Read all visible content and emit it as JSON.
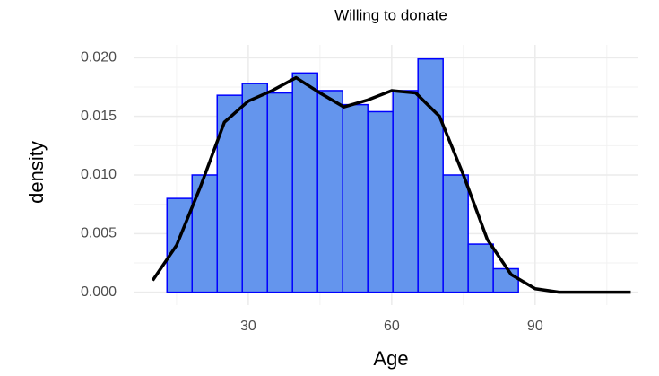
{
  "chart_data": {
    "type": "histogram",
    "title": "Willing to donate",
    "xlabel": "Age",
    "ylabel": "density",
    "bins": [
      13,
      18.25,
      23.5,
      28.75,
      34,
      39.25,
      44.5,
      49.75,
      55,
      60.25,
      65.5,
      70.75,
      76,
      81.25,
      86.5
    ],
    "values": [
      0.008,
      0.01,
      0.0168,
      0.0178,
      0.017,
      0.0187,
      0.0172,
      0.016,
      0.0154,
      0.0172,
      0.0199,
      0.01,
      0.0041,
      0.002
    ],
    "color": "#6495ed",
    "edgecolor": "#0000ff",
    "density": {
      "x": [
        10,
        15,
        20,
        25,
        30,
        35,
        40,
        45,
        50,
        55,
        60,
        65,
        70,
        75,
        80,
        85,
        90,
        95,
        100,
        110
      ],
      "y": [
        0.001,
        0.004,
        0.009,
        0.0145,
        0.0163,
        0.0172,
        0.0183,
        0.017,
        0.0158,
        0.0164,
        0.0172,
        0.017,
        0.015,
        0.01,
        0.0045,
        0.0015,
        0.0003,
        0,
        0,
        0
      ],
      "color": "#000000"
    },
    "xlim": [
      6.2,
      111.6
    ],
    "xticks": [
      30,
      60,
      90
    ],
    "ylim": [
      -0.0011,
      0.0211
    ],
    "yticks": [
      {
        "value": 0,
        "label": "0.000"
      },
      0.005,
      {
        "value": 0.01,
        "label": "0.010"
      },
      0.015,
      {
        "value": 0.02,
        "label": "0.020"
      }
    ],
    "grid": true,
    "minor_grid": true
  }
}
